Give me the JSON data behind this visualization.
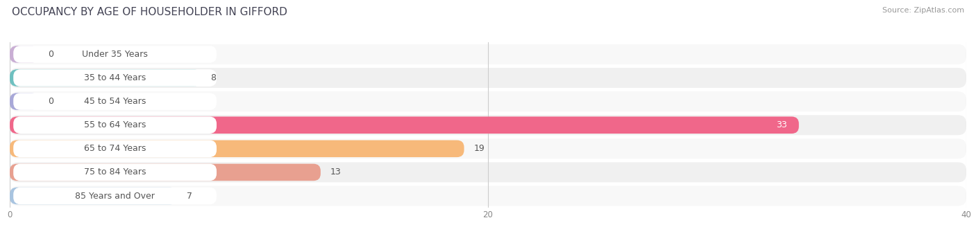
{
  "title": "OCCUPANCY BY AGE OF HOUSEHOLDER IN GIFFORD",
  "source": "Source: ZipAtlas.com",
  "categories": [
    "Under 35 Years",
    "35 to 44 Years",
    "45 to 54 Years",
    "55 to 64 Years",
    "65 to 74 Years",
    "75 to 84 Years",
    "85 Years and Over"
  ],
  "values": [
    0,
    8,
    0,
    33,
    19,
    13,
    7
  ],
  "bar_colors": [
    "#c9aed4",
    "#6ec0c0",
    "#a8a8d8",
    "#f0678a",
    "#f7b97a",
    "#e8a090",
    "#a8c4e0"
  ],
  "xlim": [
    0,
    40
  ],
  "xticks": [
    0,
    20,
    40
  ],
  "title_fontsize": 11,
  "label_fontsize": 9,
  "value_fontsize": 9,
  "bg_color": "#ffffff",
  "row_odd_bg": "#f0f0f0",
  "row_even_bg": "#f8f8f8",
  "bar_row_bg": "#e8e8e8",
  "label_box_color": "#ffffff",
  "grid_color": "#cccccc",
  "text_color": "#555555",
  "value_33_color": "#ffffff"
}
